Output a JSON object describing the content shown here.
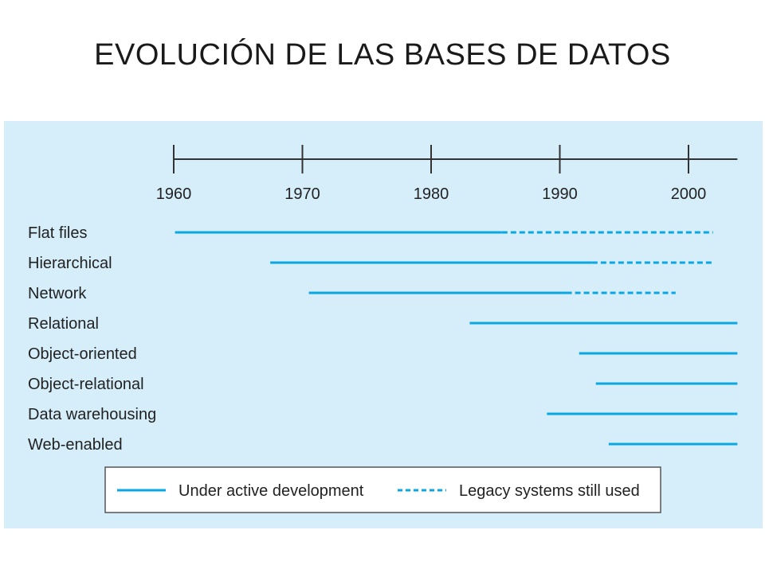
{
  "slide": {
    "title": "EVOLUCIÓN DE LAS BASES DE DATOS"
  },
  "colors": {
    "panel_background": "#d5eefa",
    "line": "#0aa7e3",
    "axis": "#333333"
  },
  "chart_data": {
    "type": "timeline",
    "title": "",
    "x_ticks": [
      1960,
      1970,
      1980,
      1990,
      2000
    ],
    "xlim": [
      1960,
      2003.8
    ],
    "categories": [
      "Flat files",
      "Hierarchical",
      "Network",
      "Relational",
      "Object-oriented",
      "Object-relational",
      "Data warehousing",
      "Web-enabled"
    ],
    "series": [
      {
        "category": "Flat files",
        "active": [
          1960.1,
          1985.5
        ],
        "legacy": [
          1985.5,
          2001.9
        ]
      },
      {
        "category": "Hierarchical",
        "active": [
          1967.5,
          1992.5
        ],
        "legacy": [
          1992.5,
          2002.0
        ]
      },
      {
        "category": "Network",
        "active": [
          1970.5,
          1990.5
        ],
        "legacy": [
          1990.5,
          1999.0
        ]
      },
      {
        "category": "Relational",
        "active": [
          1983.0,
          2003.8
        ],
        "legacy": null
      },
      {
        "category": "Object-oriented",
        "active": [
          1991.5,
          2003.8
        ],
        "legacy": null
      },
      {
        "category": "Object-relational",
        "active": [
          1992.8,
          2003.8
        ],
        "legacy": null
      },
      {
        "category": "Data warehousing",
        "active": [
          1989.0,
          2003.8
        ],
        "legacy": null
      },
      {
        "category": "Web-enabled",
        "active": [
          1993.8,
          2003.8
        ],
        "legacy": null
      }
    ],
    "legend": {
      "placement": "bottom",
      "active_label": "Under active development",
      "legacy_label": "Legacy systems still used"
    }
  }
}
